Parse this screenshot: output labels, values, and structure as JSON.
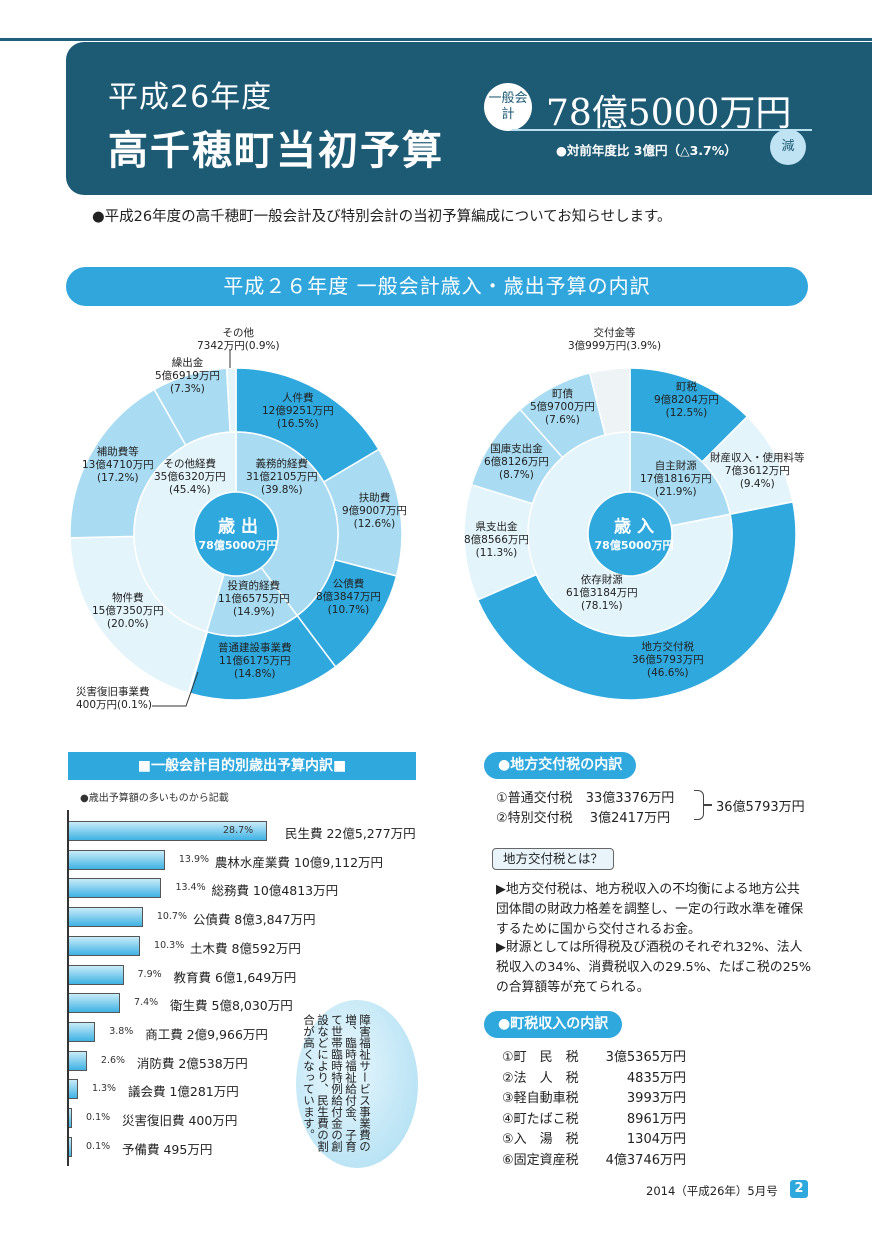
{
  "header": {
    "year": "平成26年度",
    "title": "高千穂町当初予算",
    "badge": "一般会計",
    "amount": "78億5000万円",
    "compare": "●対前年度比 3億円（△3.7%）",
    "decrease": "減"
  },
  "intro": "●平成26年度の高千穂町一般会計及び特別会計の当初予算編成についてお知らせします。",
  "banner": "平成２６年度 一般会計歳入・歳出予算の内訳",
  "expenditure": {
    "center_title": "歳 出",
    "center_amount": "78億5000万円",
    "inner": [
      {
        "name": "義務的経費",
        "amount": "31億2105万円",
        "pct": "(39.8%)",
        "value": 39.8
      },
      {
        "name": "投資的経費",
        "amount": "11億6575万円",
        "pct": "(14.9%)",
        "value": 14.9
      },
      {
        "name": "その他経費",
        "amount": "35億6320万円",
        "pct": "(45.4%)",
        "value": 45.4
      }
    ],
    "outer": [
      {
        "name": "人件費",
        "amount": "12億9251万円",
        "pct": "(16.5%)",
        "value": 16.5
      },
      {
        "name": "扶助費",
        "amount": "9億9007万円",
        "pct": "(12.6%)",
        "value": 12.6
      },
      {
        "name": "公債費",
        "amount": "8億3847万円",
        "pct": "(10.7%)",
        "value": 10.7
      },
      {
        "name": "普通建設事業費",
        "amount": "11億6175万円",
        "pct": "(14.8%)",
        "value": 14.8
      },
      {
        "name": "災害復旧事業費",
        "amount": "400万円",
        "pct": "(0.1%)",
        "value": 0.1
      },
      {
        "name": "物件費",
        "amount": "15億7350万円",
        "pct": "(20.0%)",
        "value": 20.0
      },
      {
        "name": "補助費等",
        "amount": "13億4710万円",
        "pct": "(17.2%)",
        "value": 17.2
      },
      {
        "name": "繰出金",
        "amount": "5億6919万円",
        "pct": "(7.3%)",
        "value": 7.3
      },
      {
        "name": "その他",
        "amount": "7342万円",
        "pct": "(0.9%)",
        "value": 0.9
      }
    ]
  },
  "revenue": {
    "center_title": "歳 入",
    "center_amount": "78億5000万円",
    "inner": [
      {
        "name": "自主財源",
        "amount": "17億1816万円",
        "pct": "(21.9%)",
        "value": 21.9
      },
      {
        "name": "依存財源",
        "amount": "61億3184万円",
        "pct": "(78.1%)",
        "value": 78.1
      }
    ],
    "outer": [
      {
        "name": "町税",
        "amount": "9億8204万円",
        "pct": "(12.5%)",
        "value": 12.5
      },
      {
        "name": "財産収入・使用料等",
        "amount": "7億3612万円",
        "pct": "(9.4%)",
        "value": 9.4
      },
      {
        "name": "地方交付税",
        "amount": "36億5793万円",
        "pct": "(46.6%)",
        "value": 46.6
      },
      {
        "name": "県支出金",
        "amount": "8億8566万円",
        "pct": "(11.3%)",
        "value": 11.3
      },
      {
        "name": "国庫支出金",
        "amount": "6億8126万円",
        "pct": "(8.7%)",
        "value": 8.7
      },
      {
        "name": "町債",
        "amount": "5億9700万円",
        "pct": "(7.6%)",
        "value": 7.6
      },
      {
        "name": "交付金等",
        "amount": "3億999万円",
        "pct": "(3.9%)",
        "value": 3.9
      }
    ]
  },
  "purpose": {
    "title": "■一般会計目的別歳出予算内訳■",
    "note": "●歳出予算額の多いものから記載",
    "items": [
      {
        "pct": "28.7%",
        "label": "民生費 22億5,277万円",
        "value": 28.7
      },
      {
        "pct": "13.9%",
        "label": "農林水産業費 10億9,112万円",
        "value": 13.9
      },
      {
        "pct": "13.4%",
        "label": "総務費 10億4813万円",
        "value": 13.4
      },
      {
        "pct": "10.7%",
        "label": "公債費 8億3,847万円",
        "value": 10.7
      },
      {
        "pct": "10.3%",
        "label": "土木費 8億592万円",
        "value": 10.3
      },
      {
        "pct": "7.9%",
        "label": "教育費 6億1,649万円",
        "value": 7.9
      },
      {
        "pct": "7.4%",
        "label": "衛生費 5億8,030万円",
        "value": 7.4
      },
      {
        "pct": "3.8%",
        "label": "商工費 2億9,966万円",
        "value": 3.8
      },
      {
        "pct": "2.6%",
        "label": "消防費 2億538万円",
        "value": 2.6
      },
      {
        "pct": "1.3%",
        "label": "議会費 1億281万円",
        "value": 1.3
      },
      {
        "pct": "0.1%",
        "label": "災害復旧費 400万円",
        "value": 0.1
      },
      {
        "pct": "0.1%",
        "label": "予備費 495万円",
        "value": 0.1
      }
    ],
    "bubble": "障害福祉サービス事業費の増、臨時福祉給付金、子育て世帯臨時特例給付金の創設などにより、民生費の割合が高くなっています。"
  },
  "tax": {
    "title": "●地方交付税の内訳",
    "items": [
      {
        "label": "①普通交付税",
        "amount": "33億3376万円"
      },
      {
        "label": "②特別交付税",
        "amount": "3億2417万円"
      }
    ],
    "total": "36億5793万円",
    "question": "地方交付税とは？",
    "para1": "▶地方交付税は、地方税収入の不均衡による地方公共団体間の財政力格差を調整し、一定の行政水準を確保するために国から交付されるお金。",
    "para2": "▶財源としては所得税及び酒税のそれぞれ32%、法人税収入の34%、消費税収入の29.5%、たばこ税の25%の合算額等が充てられる。"
  },
  "town_tax": {
    "title": "●町税収入の内訳",
    "items": [
      {
        "label": "①町　民　税",
        "amount": "3億5365万円"
      },
      {
        "label": "②法　人　税",
        "amount": "4835万円"
      },
      {
        "label": "③軽自動車税",
        "amount": "3993万円"
      },
      {
        "label": "④町たばこ税",
        "amount": "8961万円"
      },
      {
        "label": "⑤入　湯　税",
        "amount": "1304万円"
      },
      {
        "label": "⑥固定資産税",
        "amount": "4億3746万円"
      }
    ]
  },
  "footer": {
    "issue": "2014（平成26年）5月号",
    "page": "2"
  },
  "colors": {
    "navy": "#1d5a74",
    "accent": "#2fa8de",
    "dark_seg": "#2fa8de",
    "light_seg": "#a9dcf2",
    "pale_seg": "#e4f4fb"
  }
}
